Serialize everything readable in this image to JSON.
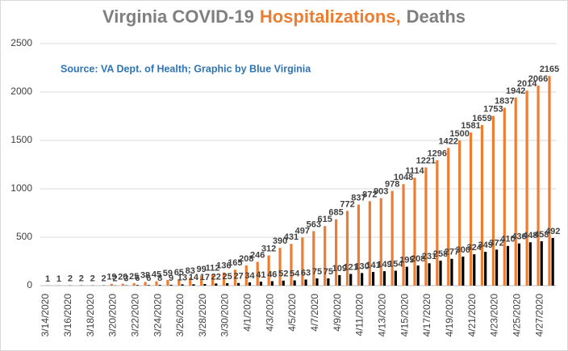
{
  "chart_data": {
    "type": "bar",
    "title_parts": [
      {
        "text": "Virginia COVID-19",
        "color": "#7f7f7f"
      },
      {
        "text": "Hospitalizations,",
        "color": "#ed7d31"
      },
      {
        "text": "Deaths",
        "color": "#7f7f7f"
      }
    ],
    "subtitle": "Source: VA Dept. of Health; Graphic by Blue Virginia",
    "subtitle_color": "#2e75b6",
    "categories": [
      "3/14/2020",
      null,
      "3/16/2020",
      null,
      "3/18/2020",
      null,
      "3/20/2020",
      null,
      "3/22/2020",
      null,
      "3/24/2020",
      null,
      "3/26/2020",
      null,
      "3/28/2020",
      null,
      "3/30/2020",
      null,
      "4/1/2020",
      null,
      "4/3/2020",
      null,
      "4/5/2020",
      null,
      "4/7/2020",
      null,
      "4/9/2020",
      null,
      "4/11/2020",
      null,
      "4/13/2020",
      null,
      "4/15/2020",
      null,
      "4/17/2020",
      null,
      "4/19/2020",
      null,
      "4/21/2020",
      null,
      "4/23/2020",
      null,
      "4/25/2020",
      null,
      "4/27/2020",
      null
    ],
    "series": [
      {
        "name": "Hospitalizations",
        "color": "#ed7d31",
        "values": [
          null,
          null,
          null,
          null,
          null,
          null,
          19,
          20,
          25,
          38,
          45,
          59,
          65,
          83,
          99,
          112,
          136,
          165,
          208,
          246,
          312,
          390,
          431,
          497,
          563,
          615,
          685,
          772,
          837,
          872,
          903,
          978,
          1048,
          1114,
          1221,
          1296,
          1422,
          1500,
          1581,
          1659,
          1753,
          1837,
          1942,
          2014,
          2066,
          2165
        ]
      },
      {
        "name": "Deaths",
        "color": "#000000",
        "values": [
          1,
          1,
          2,
          2,
          2,
          2,
          2,
          3,
          6,
          6,
          8,
          9,
          13,
          14,
          17,
          22,
          25,
          27,
          34,
          41,
          46,
          52,
          54,
          63,
          75,
          75,
          109,
          121,
          130,
          141,
          149,
          154,
          195,
          208,
          231,
          258,
          277,
          300,
          324,
          349,
          372,
          410,
          436,
          448,
          458,
          492
        ]
      }
    ],
    "ylim": [
      0,
      2500
    ],
    "yticks": [
      0,
      500,
      1000,
      1500,
      2000,
      2500
    ],
    "grid": true
  }
}
